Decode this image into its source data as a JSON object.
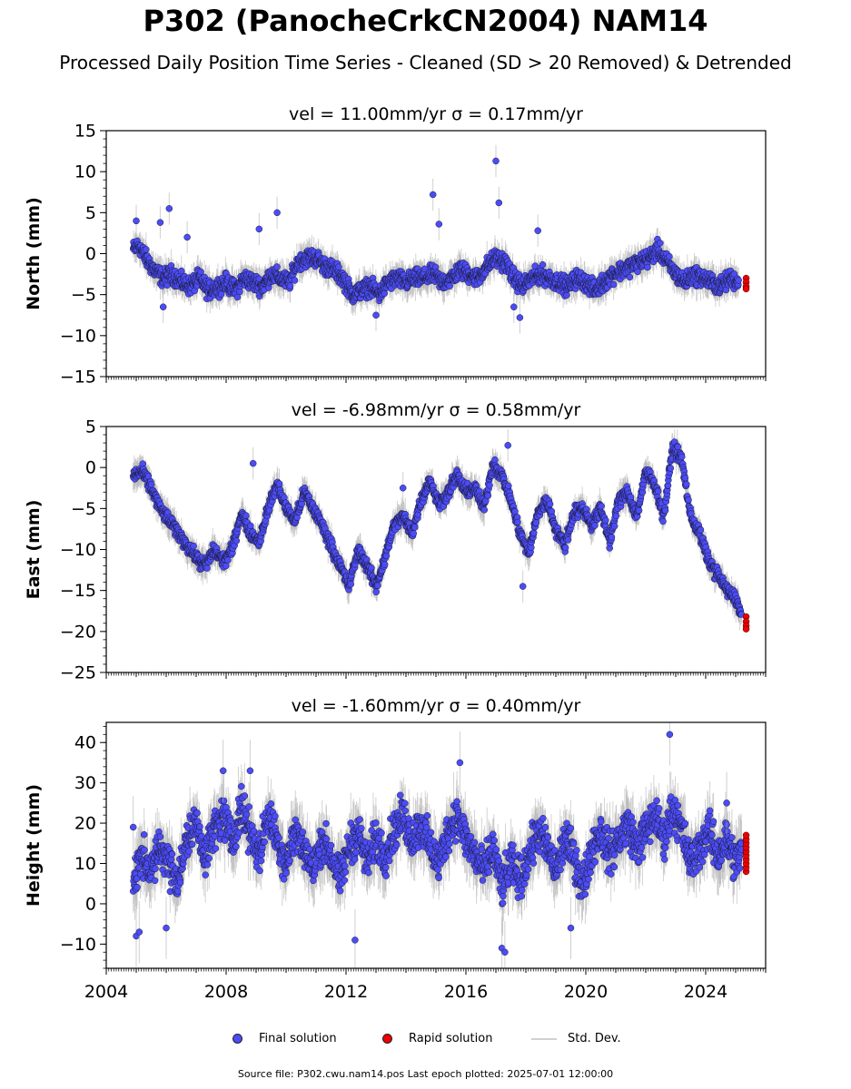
{
  "title": "P302 (PanocheCrkCN2004) NAM14",
  "subtitle": "Processed Daily Position Time Series - Cleaned (SD > 20 Removed) & Detrended",
  "legend": {
    "final": "Final solution",
    "rapid": "Rapid solution",
    "std": "Std. Dev."
  },
  "footer": "Source file: P302.cwu.nam14.pos  Last epoch plotted: 2025-07-01 12:00:00",
  "colors": {
    "final": "#4c4cf5",
    "rapid": "#ee0000",
    "std": "#b0b0b0",
    "edge": "#1a1a3a"
  },
  "chart_data": [
    {
      "type": "scatter",
      "title": "vel = 11.00mm/yr   σ = 0.17mm/yr",
      "ylabel": "North (mm)",
      "xlim": [
        2004,
        2026
      ],
      "ylim": [
        -15,
        15
      ],
      "yticks": [
        -15,
        -10,
        -5,
        0,
        5,
        10,
        15
      ],
      "xticks": [
        2004,
        2008,
        2012,
        2016,
        2020,
        2024
      ],
      "show_xticklabels": false,
      "series": [
        {
          "name": "Final solution",
          "x": [
            2004.9,
            2005.1,
            2005.3,
            2005.6,
            2005.9,
            2006.2,
            2006.5,
            2006.8,
            2007.1,
            2007.4,
            2007.7,
            2008.0,
            2008.3,
            2008.6,
            2008.9,
            2009.2,
            2009.5,
            2009.8,
            2010.1,
            2010.4,
            2010.7,
            2011.0,
            2011.3,
            2011.6,
            2011.9,
            2012.2,
            2012.5,
            2012.8,
            2013.1,
            2013.4,
            2013.7,
            2014.0,
            2014.3,
            2014.6,
            2014.9,
            2015.2,
            2015.5,
            2015.8,
            2016.1,
            2016.4,
            2016.7,
            2017.0,
            2017.3,
            2017.6,
            2017.9,
            2018.2,
            2018.5,
            2018.8,
            2019.1,
            2019.4,
            2019.7,
            2020.0,
            2020.3,
            2020.6,
            2020.9,
            2021.2,
            2021.5,
            2021.8,
            2022.1,
            2022.4,
            2022.7,
            2023.0,
            2023.3,
            2023.6,
            2023.9,
            2024.2,
            2024.5,
            2024.8,
            2025.1
          ],
          "y": [
            0.5,
            1.0,
            -0.5,
            -2.0,
            -3.0,
            -2.5,
            -3.5,
            -4.0,
            -3.0,
            -4.5,
            -4.0,
            -3.5,
            -4.5,
            -3.0,
            -3.5,
            -4.0,
            -2.5,
            -3.0,
            -3.5,
            -1.0,
            -0.5,
            -0.5,
            -1.5,
            -2.0,
            -3.0,
            -5.0,
            -4.5,
            -4.0,
            -5.0,
            -3.5,
            -3.0,
            -3.5,
            -3.0,
            -3.0,
            -2.5,
            -3.5,
            -3.0,
            -2.0,
            -2.5,
            -3.0,
            -1.5,
            -0.5,
            -1.0,
            -3.0,
            -4.0,
            -3.0,
            -2.5,
            -3.0,
            -3.5,
            -4.0,
            -3.0,
            -3.5,
            -4.5,
            -3.5,
            -2.5,
            -2.0,
            -1.5,
            -1.0,
            -0.5,
            0.5,
            -1.0,
            -2.5,
            -3.5,
            -2.5,
            -3.0,
            -3.5,
            -4.0,
            -3.0,
            -3.5
          ],
          "outliers_x": [
            2005.0,
            2005.8,
            2006.1,
            2006.7,
            2009.1,
            2009.7,
            2014.9,
            2015.1,
            2017.0,
            2017.1,
            2017.6,
            2018.4,
            2005.9,
            2013.0,
            2017.8
          ],
          "outliers_y": [
            4.0,
            3.8,
            5.5,
            2.0,
            3.0,
            5.0,
            7.2,
            3.6,
            11.3,
            6.2,
            -6.5,
            2.8,
            -6.5,
            -7.5,
            -7.8
          ]
        },
        {
          "name": "Rapid solution",
          "x": [
            2025.35,
            2025.35,
            2025.35,
            2025.35
          ],
          "y": [
            -3.0,
            -3.5,
            -4.0,
            -4.3
          ]
        }
      ]
    },
    {
      "type": "scatter",
      "title": "vel = -6.98mm/yr   σ = 0.58mm/yr",
      "ylabel": "East (mm)",
      "xlim": [
        2004,
        2026
      ],
      "ylim": [
        -25,
        5
      ],
      "yticks": [
        -25,
        -20,
        -15,
        -10,
        -5,
        0,
        5
      ],
      "xticks": [
        2004,
        2008,
        2012,
        2016,
        2020,
        2024
      ],
      "show_xticklabels": false,
      "series": [
        {
          "name": "Final solution",
          "x": [
            2004.9,
            2005.2,
            2005.5,
            2005.8,
            2006.1,
            2006.4,
            2006.7,
            2007.0,
            2007.3,
            2007.6,
            2007.9,
            2008.2,
            2008.5,
            2008.8,
            2009.1,
            2009.4,
            2009.7,
            2010.0,
            2010.3,
            2010.6,
            2010.9,
            2011.2,
            2011.5,
            2011.8,
            2012.1,
            2012.4,
            2012.7,
            2013.0,
            2013.3,
            2013.6,
            2013.9,
            2014.2,
            2014.5,
            2014.8,
            2015.1,
            2015.4,
            2015.7,
            2016.0,
            2016.3,
            2016.6,
            2016.9,
            2017.2,
            2017.5,
            2017.8,
            2018.1,
            2018.4,
            2018.7,
            2019.0,
            2019.3,
            2019.6,
            2019.9,
            2020.2,
            2020.5,
            2020.8,
            2021.1,
            2021.4,
            2021.7,
            2022.0,
            2022.3,
            2022.6,
            2022.9,
            2023.2,
            2023.5,
            2023.8,
            2024.1,
            2024.4,
            2024.7,
            2025.0,
            2025.2
          ],
          "y": [
            -1.0,
            -0.5,
            -2.5,
            -5.0,
            -6.5,
            -8.0,
            -9.5,
            -11.0,
            -12.0,
            -10.0,
            -11.5,
            -10.0,
            -5.5,
            -8.0,
            -9.0,
            -5.0,
            -2.0,
            -5.0,
            -6.5,
            -3.0,
            -5.0,
            -7.0,
            -9.5,
            -12.0,
            -14.5,
            -10.0,
            -12.0,
            -14.5,
            -11.0,
            -7.0,
            -6.0,
            -8.0,
            -4.0,
            -1.5,
            -4.5,
            -3.0,
            -1.0,
            -3.0,
            -2.5,
            -5.0,
            0.5,
            -1.0,
            -4.0,
            -8.0,
            -10.5,
            -5.5,
            -4.0,
            -7.5,
            -9.5,
            -5.5,
            -5.0,
            -7.0,
            -5.0,
            -9.0,
            -4.0,
            -3.0,
            -6.0,
            -0.5,
            -2.0,
            -6.0,
            2.5,
            1.0,
            -6.0,
            -8.0,
            -11.5,
            -13.0,
            -15.0,
            -16.0,
            -18.0
          ],
          "outliers_x": [
            2008.9,
            2013.9,
            2017.4,
            2017.9
          ],
          "outliers_y": [
            0.5,
            -2.5,
            2.7,
            -14.5
          ]
        },
        {
          "name": "Rapid solution",
          "x": [
            2025.35,
            2025.35,
            2025.35,
            2025.35
          ],
          "y": [
            -18.2,
            -18.8,
            -19.3,
            -19.7
          ]
        }
      ]
    },
    {
      "type": "scatter",
      "title": "vel = -1.60mm/yr   σ = 0.40mm/yr",
      "ylabel": "Height (mm)",
      "xlim": [
        2004,
        2026
      ],
      "ylim": [
        -16,
        45
      ],
      "yticks": [
        -10,
        0,
        10,
        20,
        30,
        40
      ],
      "xticks": [
        2004,
        2008,
        2012,
        2016,
        2020,
        2024
      ],
      "show_xticklabels": true,
      "series": [
        {
          "name": "Final solution",
          "x": [
            2004.9,
            2005.2,
            2005.5,
            2005.8,
            2006.1,
            2006.4,
            2006.7,
            2007.0,
            2007.3,
            2007.6,
            2007.9,
            2008.2,
            2008.5,
            2008.8,
            2009.1,
            2009.4,
            2009.7,
            2010.0,
            2010.3,
            2010.6,
            2010.9,
            2011.2,
            2011.5,
            2011.8,
            2012.1,
            2012.4,
            2012.7,
            2013.0,
            2013.3,
            2013.6,
            2013.9,
            2014.2,
            2014.5,
            2014.8,
            2015.1,
            2015.4,
            2015.7,
            2016.0,
            2016.3,
            2016.6,
            2016.9,
            2017.2,
            2017.5,
            2017.8,
            2018.1,
            2018.4,
            2018.7,
            2019.0,
            2019.3,
            2019.6,
            2019.9,
            2020.2,
            2020.5,
            2020.8,
            2021.1,
            2021.4,
            2021.7,
            2022.0,
            2022.3,
            2022.6,
            2022.9,
            2023.2,
            2023.5,
            2023.8,
            2024.1,
            2024.4,
            2024.7,
            2025.0,
            2025.2
          ],
          "y": [
            5,
            12,
            8,
            14,
            10,
            6,
            16,
            20,
            12,
            18,
            22,
            15,
            24,
            18,
            12,
            22,
            16,
            10,
            18,
            14,
            8,
            16,
            12,
            6,
            14,
            18,
            10,
            16,
            12,
            18,
            22,
            16,
            20,
            14,
            10,
            18,
            22,
            16,
            12,
            8,
            14,
            4,
            10,
            6,
            12,
            18,
            14,
            8,
            16,
            12,
            4,
            14,
            18,
            12,
            16,
            20,
            14,
            18,
            22,
            16,
            24,
            18,
            10,
            14,
            18,
            12,
            16,
            10,
            14
          ],
          "outliers_x": [
            2004.9,
            2005.0,
            2005.1,
            2007.9,
            2008.8,
            2015.8,
            2017.2,
            2017.3,
            2022.8,
            2012.3,
            2019.5,
            2024.7,
            2006.0
          ],
          "outliers_y": [
            19,
            -8,
            -7,
            33,
            33,
            35,
            -11,
            -12,
            42,
            -9,
            -6,
            25,
            -6
          ]
        },
        {
          "name": "Rapid solution",
          "x": [
            2025.35,
            2025.35,
            2025.35,
            2025.35,
            2025.35,
            2025.35,
            2025.35,
            2025.35,
            2025.35,
            2025.35
          ],
          "y": [
            8,
            9,
            10,
            11,
            12,
            13,
            14,
            15,
            16,
            17
          ]
        }
      ]
    }
  ]
}
